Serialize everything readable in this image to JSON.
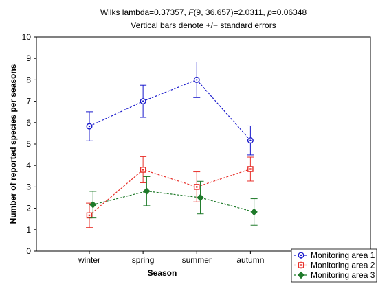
{
  "chart_data": {
    "type": "line",
    "title_line1": "Wilks lambda=0.37357, F(9, 36.657)=2.0311, p=0.06348",
    "title_parts": [
      {
        "text": "Wilks lambda=0.37357, ",
        "italic": false
      },
      {
        "text": "F",
        "italic": true
      },
      {
        "text": "(9, 36.657)=2.0311, ",
        "italic": false
      },
      {
        "text": "p",
        "italic": true
      },
      {
        "text": "=0.06348",
        "italic": false
      }
    ],
    "subtitle": "Vertical bars denote +/− standard errors",
    "xlabel": "Season",
    "ylabel": "Number of reported species per seasons",
    "categories": [
      "winter",
      "spring",
      "summer",
      "autumn"
    ],
    "ylim": [
      0,
      10
    ],
    "yticks": [
      "0",
      "1",
      "2",
      "3",
      "4",
      "5",
      "6",
      "7",
      "8",
      "9",
      "10"
    ],
    "grid": false,
    "legend_position": "bottom-right",
    "series": [
      {
        "name": "Monitoring area 1",
        "color": "#1a1acc",
        "marker": "circle",
        "offset": 0,
        "values": [
          5.83,
          7.0,
          8.0,
          5.17
        ],
        "errors": [
          0.68,
          0.75,
          0.83,
          0.68
        ]
      },
      {
        "name": "Monitoring area 2",
        "color": "#e8302a",
        "marker": "square",
        "offset": 0,
        "values": [
          1.67,
          3.8,
          3.0,
          3.83
        ],
        "errors": [
          0.57,
          0.61,
          0.7,
          0.56
        ]
      },
      {
        "name": "Monitoring area 3",
        "color": "#1f7a2a",
        "marker": "diamond",
        "offset": 0.25,
        "values": [
          2.17,
          2.8,
          2.5,
          1.83
        ],
        "errors": [
          0.62,
          0.68,
          0.76,
          0.62
        ]
      }
    ]
  }
}
